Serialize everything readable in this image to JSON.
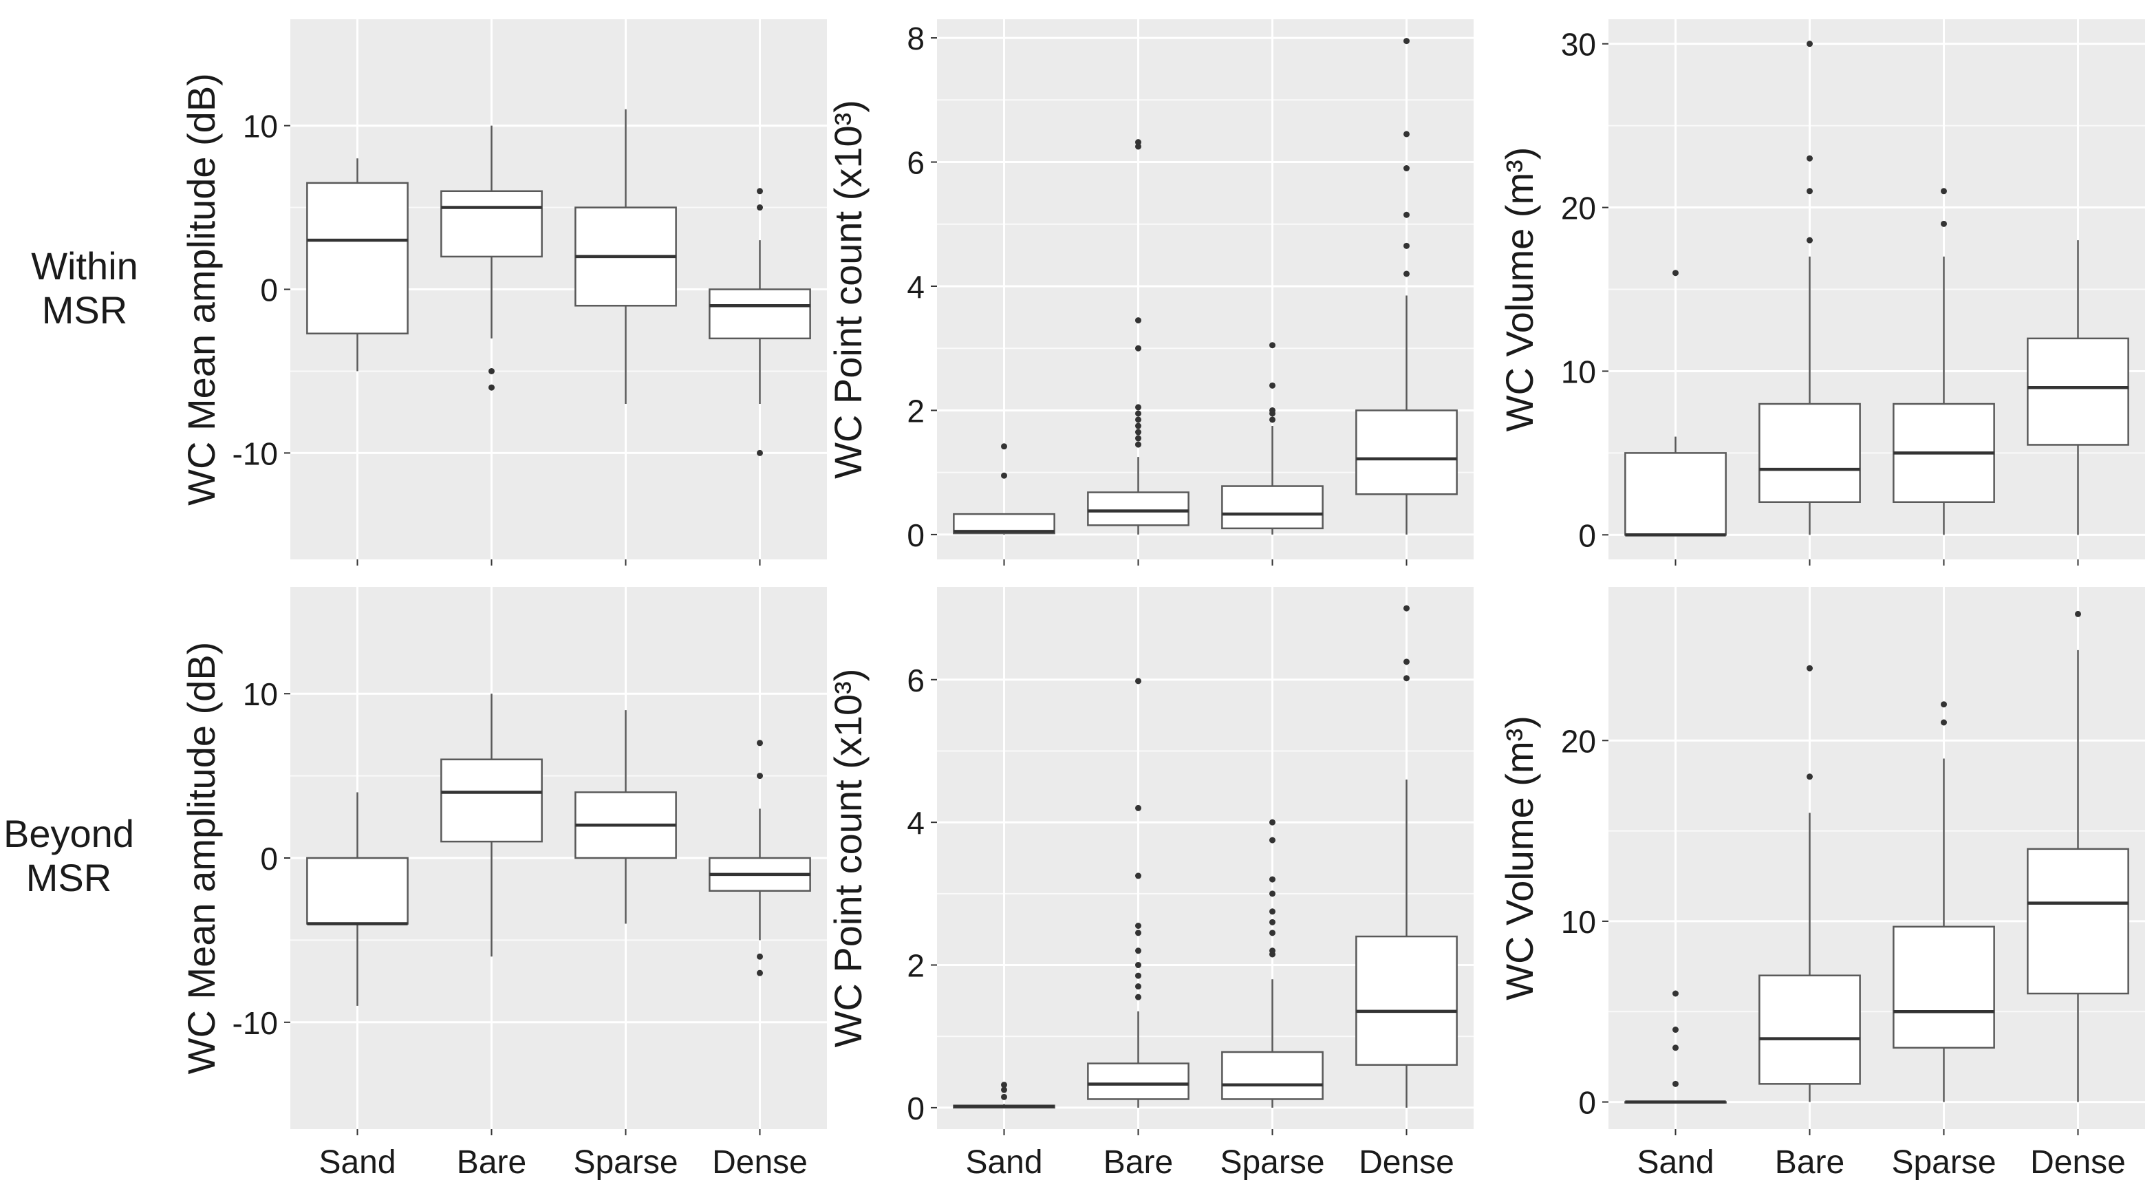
{
  "row_labels": [
    {
      "line1": "Within",
      "line2": "MSR"
    },
    {
      "line1": "Beyond",
      "line2": "MSR"
    }
  ],
  "colors": {
    "panel_bg": "#ebebeb",
    "grid": "#ffffff",
    "box_fill": "#ffffff",
    "box_stroke": "#595959",
    "text": "#1a1a1a"
  },
  "chart_data": [
    {
      "type": "boxplot",
      "row": "Within MSR",
      "ylabel": "WC Mean amplitude (dB)",
      "ylim": [
        -16.5,
        16.5
      ],
      "yticks": [
        -10,
        0,
        10
      ],
      "ytick_labels": [
        "-10",
        "0",
        "10"
      ],
      "categories": [
        "Sand",
        "Bare",
        "Sparse",
        "Dense"
      ],
      "boxes": [
        {
          "category": "Sand",
          "whisker_low": -5,
          "q1": -2.7,
          "median": 3,
          "q3": 6.5,
          "whisker_high": 8,
          "outliers": []
        },
        {
          "category": "Bare",
          "whisker_low": -3,
          "q1": 2,
          "median": 5,
          "q3": 6,
          "whisker_high": 10,
          "outliers": [
            -5,
            -6
          ]
        },
        {
          "category": "Sparse",
          "whisker_low": -7,
          "q1": -1,
          "median": 2,
          "q3": 5,
          "whisker_high": 11,
          "outliers": []
        },
        {
          "category": "Dense",
          "whisker_low": -7,
          "q1": -3,
          "median": -1,
          "q3": 0,
          "whisker_high": 3,
          "outliers": [
            5,
            6,
            -10
          ]
        }
      ]
    },
    {
      "type": "boxplot",
      "row": "Within MSR",
      "ylabel": "WC Point count (x10³)",
      "ylim": [
        -0.4,
        8.3
      ],
      "yticks": [
        0,
        2,
        4,
        6,
        8
      ],
      "ytick_labels": [
        "0",
        "2",
        "4",
        "6",
        "8"
      ],
      "categories": [
        "Sand",
        "Bare",
        "Sparse",
        "Dense"
      ],
      "boxes": [
        {
          "category": "Sand",
          "whisker_low": 0,
          "q1": 0.02,
          "median": 0.05,
          "q3": 0.33,
          "whisker_high": 0.33,
          "outliers": [
            0.95,
            1.42
          ]
        },
        {
          "category": "Bare",
          "whisker_low": 0,
          "q1": 0.15,
          "median": 0.38,
          "q3": 0.68,
          "whisker_high": 1.25,
          "outliers": [
            1.45,
            1.55,
            1.65,
            1.75,
            1.85,
            1.95,
            2.05,
            3.0,
            3.45,
            6.25,
            6.32
          ]
        },
        {
          "category": "Sparse",
          "whisker_low": 0,
          "q1": 0.1,
          "median": 0.33,
          "q3": 0.78,
          "whisker_high": 1.75,
          "outliers": [
            1.85,
            1.95,
            2.0,
            2.4,
            3.05
          ]
        },
        {
          "category": "Dense",
          "whisker_low": 0,
          "q1": 0.65,
          "median": 1.22,
          "q3": 2.0,
          "whisker_high": 3.85,
          "outliers": [
            4.2,
            4.65,
            5.15,
            5.9,
            6.45,
            7.95
          ]
        }
      ]
    },
    {
      "type": "boxplot",
      "row": "Within MSR",
      "ylabel": "WC Volume (m³)",
      "ylim": [
        -1.5,
        31.5
      ],
      "yticks": [
        0,
        10,
        20,
        30
      ],
      "ytick_labels": [
        "0",
        "10",
        "20",
        "30"
      ],
      "categories": [
        "Sand",
        "Bare",
        "Sparse",
        "Dense"
      ],
      "boxes": [
        {
          "category": "Sand",
          "whisker_low": 0,
          "q1": 0,
          "median": 0,
          "q3": 5,
          "whisker_high": 6,
          "outliers": [
            16
          ]
        },
        {
          "category": "Bare",
          "whisker_low": 0,
          "q1": 2,
          "median": 4,
          "q3": 8,
          "whisker_high": 17,
          "outliers": [
            18,
            21,
            23,
            30
          ]
        },
        {
          "category": "Sparse",
          "whisker_low": 0,
          "q1": 2,
          "median": 5,
          "q3": 8,
          "whisker_high": 17,
          "outliers": [
            19,
            21
          ]
        },
        {
          "category": "Dense",
          "whisker_low": 0,
          "q1": 5.5,
          "median": 9,
          "q3": 12,
          "whisker_high": 18,
          "outliers": []
        }
      ]
    },
    {
      "type": "boxplot",
      "row": "Beyond MSR",
      "ylabel": "WC Mean amplitude (dB)",
      "ylim": [
        -16.5,
        16.5
      ],
      "yticks": [
        -10,
        0,
        10
      ],
      "ytick_labels": [
        "-10",
        "0",
        "10"
      ],
      "categories": [
        "Sand",
        "Bare",
        "Sparse",
        "Dense"
      ],
      "boxes": [
        {
          "category": "Sand",
          "whisker_low": -9,
          "q1": -4,
          "median": -4,
          "q3": 0,
          "whisker_high": 4,
          "outliers": []
        },
        {
          "category": "Bare",
          "whisker_low": -6,
          "q1": 1,
          "median": 4,
          "q3": 6,
          "whisker_high": 10,
          "outliers": []
        },
        {
          "category": "Sparse",
          "whisker_low": -4,
          "q1": 0,
          "median": 2,
          "q3": 4,
          "whisker_high": 9,
          "outliers": []
        },
        {
          "category": "Dense",
          "whisker_low": -5,
          "q1": -2,
          "median": -1,
          "q3": 0,
          "whisker_high": 3,
          "outliers": [
            5,
            7,
            -6,
            -7
          ]
        }
      ]
    },
    {
      "type": "boxplot",
      "row": "Beyond MSR",
      "ylabel": "WC Point count (x10³)",
      "ylim": [
        -0.3,
        7.3
      ],
      "yticks": [
        0,
        2,
        4,
        6
      ],
      "ytick_labels": [
        "0",
        "2",
        "4",
        "6"
      ],
      "categories": [
        "Sand",
        "Bare",
        "Sparse",
        "Dense"
      ],
      "boxes": [
        {
          "category": "Sand",
          "whisker_low": 0,
          "q1": 0,
          "median": 0.02,
          "q3": 0.03,
          "whisker_high": 0.05,
          "outliers": [
            0.15,
            0.25,
            0.32
          ]
        },
        {
          "category": "Bare",
          "whisker_low": 0,
          "q1": 0.12,
          "median": 0.33,
          "q3": 0.62,
          "whisker_high": 1.35,
          "outliers": [
            1.55,
            1.7,
            1.85,
            2.0,
            2.2,
            2.45,
            2.55,
            3.25,
            4.2,
            5.98
          ]
        },
        {
          "category": "Sparse",
          "whisker_low": 0,
          "q1": 0.12,
          "median": 0.32,
          "q3": 0.78,
          "whisker_high": 1.8,
          "outliers": [
            2.15,
            2.2,
            2.45,
            2.6,
            2.75,
            3.0,
            3.2,
            3.75,
            4.0
          ]
        },
        {
          "category": "Dense",
          "whisker_low": 0,
          "q1": 0.6,
          "median": 1.35,
          "q3": 2.4,
          "whisker_high": 4.6,
          "outliers": [
            6.02,
            6.25,
            7.0
          ]
        }
      ]
    },
    {
      "type": "boxplot",
      "row": "Beyond MSR",
      "ylabel": "WC Volume (m³)",
      "ylim": [
        -1.5,
        28.5
      ],
      "yticks": [
        0,
        10,
        20
      ],
      "ytick_labels": [
        "0",
        "10",
        "20"
      ],
      "categories": [
        "Sand",
        "Bare",
        "Sparse",
        "Dense"
      ],
      "boxes": [
        {
          "category": "Sand",
          "whisker_low": 0,
          "q1": 0,
          "median": 0,
          "q3": 0,
          "whisker_high": 0,
          "outliers": [
            1,
            3,
            4,
            6
          ]
        },
        {
          "category": "Bare",
          "whisker_low": 0,
          "q1": 1,
          "median": 3.5,
          "q3": 7,
          "whisker_high": 16,
          "outliers": [
            18,
            24
          ]
        },
        {
          "category": "Sparse",
          "whisker_low": 0,
          "q1": 3,
          "median": 5,
          "q3": 9.7,
          "whisker_high": 19,
          "outliers": [
            21,
            22
          ]
        },
        {
          "category": "Dense",
          "whisker_low": 0,
          "q1": 6,
          "median": 11,
          "q3": 14,
          "whisker_high": 25,
          "outliers": [
            27
          ]
        }
      ]
    }
  ]
}
